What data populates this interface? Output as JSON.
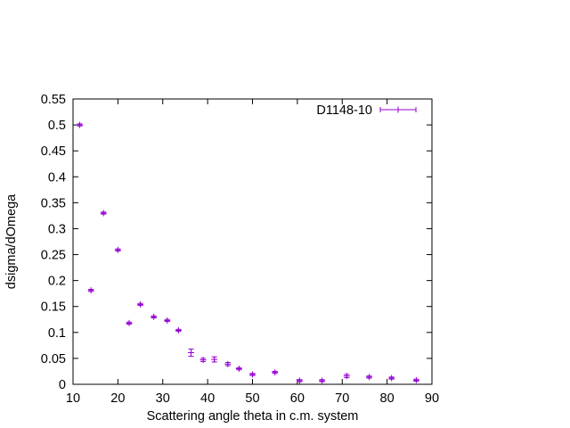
{
  "chart_data": {
    "type": "scatter",
    "title": "",
    "xlabel": "Scattering angle theta in c.m. system",
    "ylabel": "dsigma/dOmega",
    "xlim": [
      10,
      90
    ],
    "ylim": [
      0,
      0.55
    ],
    "xticks": [
      10,
      20,
      30,
      40,
      50,
      60,
      70,
      80,
      90
    ],
    "yticks": [
      0,
      0.05,
      0.1,
      0.15,
      0.2,
      0.25,
      0.3,
      0.35,
      0.4,
      0.45,
      0.5,
      0.55
    ],
    "xtick_labels": [
      "10",
      "20",
      "30",
      "40",
      "50",
      "60",
      "70",
      "80",
      "90"
    ],
    "ytick_labels": [
      "0",
      "0.05",
      "0.1",
      "0.15",
      "0.2",
      "0.25",
      "0.3",
      "0.35",
      "0.4",
      "0.45",
      "0.5",
      "0.55"
    ],
    "grid": false,
    "legend_position": "top-right",
    "series": [
      {
        "name": "D1148-10",
        "color": "#9400d3",
        "points": [
          {
            "x": 11.5,
            "y": 0.5,
            "err": 0.002
          },
          {
            "x": 14.0,
            "y": 0.181,
            "err": 0.002
          },
          {
            "x": 16.8,
            "y": 0.33,
            "err": 0.002
          },
          {
            "x": 20.0,
            "y": 0.259,
            "err": 0.002
          },
          {
            "x": 22.5,
            "y": 0.118,
            "err": 0.002
          },
          {
            "x": 25.0,
            "y": 0.154,
            "err": 0.002
          },
          {
            "x": 28.0,
            "y": 0.13,
            "err": 0.002
          },
          {
            "x": 31.0,
            "y": 0.123,
            "err": 0.002
          },
          {
            "x": 33.5,
            "y": 0.104,
            "err": 0.002
          },
          {
            "x": 36.3,
            "y": 0.061,
            "err": 0.007
          },
          {
            "x": 39.0,
            "y": 0.047,
            "err": 0.003
          },
          {
            "x": 41.5,
            "y": 0.048,
            "err": 0.005
          },
          {
            "x": 44.5,
            "y": 0.039,
            "err": 0.003
          },
          {
            "x": 47.0,
            "y": 0.03,
            "err": 0.002
          },
          {
            "x": 50.0,
            "y": 0.019,
            "err": 0.002
          },
          {
            "x": 55.0,
            "y": 0.023,
            "err": 0.002
          },
          {
            "x": 60.5,
            "y": 0.007,
            "err": 0.002
          },
          {
            "x": 65.5,
            "y": 0.007,
            "err": 0.002
          },
          {
            "x": 71.0,
            "y": 0.016,
            "err": 0.003
          },
          {
            "x": 76.0,
            "y": 0.014,
            "err": 0.002
          },
          {
            "x": 81.0,
            "y": 0.012,
            "err": 0.002
          },
          {
            "x": 86.5,
            "y": 0.008,
            "err": 0.002
          }
        ]
      }
    ]
  }
}
